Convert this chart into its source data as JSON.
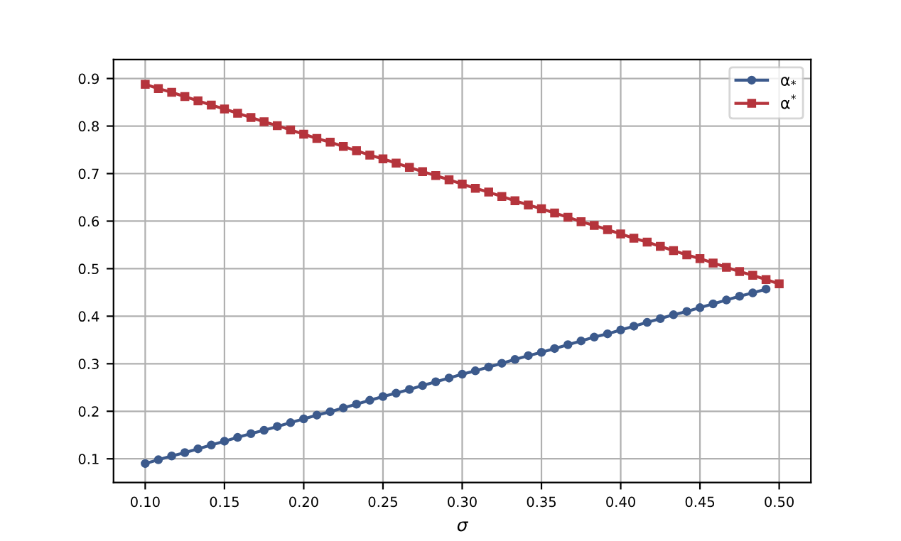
{
  "chart_data": {
    "type": "line",
    "xlabel": "σ",
    "x": [
      0.1,
      0.1083,
      0.1167,
      0.125,
      0.1333,
      0.1417,
      0.15,
      0.1583,
      0.1667,
      0.175,
      0.1833,
      0.1917,
      0.2,
      0.2083,
      0.2167,
      0.225,
      0.2333,
      0.2417,
      0.25,
      0.2583,
      0.2667,
      0.275,
      0.2833,
      0.2917,
      0.3,
      0.3083,
      0.3167,
      0.325,
      0.3333,
      0.3417,
      0.35,
      0.3583,
      0.3667,
      0.375,
      0.3833,
      0.3917,
      0.4,
      0.4083,
      0.4167,
      0.425,
      0.4333,
      0.4417,
      0.45,
      0.4583,
      0.4667,
      0.475,
      0.4833,
      0.4917,
      0.5
    ],
    "series": [
      {
        "name": "α$_{*}$",
        "color": "#3c5a8c",
        "marker": "circle",
        "values": [
          0.09,
          0.098,
          0.106,
          0.113,
          0.121,
          0.129,
          0.137,
          0.145,
          0.153,
          0.16,
          0.168,
          0.176,
          0.184,
          0.192,
          0.199,
          0.207,
          0.215,
          0.223,
          0.231,
          0.238,
          0.246,
          0.254,
          0.262,
          0.27,
          0.278,
          0.285,
          0.293,
          0.301,
          0.309,
          0.317,
          0.324,
          0.332,
          0.34,
          0.348,
          0.356,
          0.363,
          0.371,
          0.379,
          0.387,
          0.395,
          0.403,
          0.41,
          0.418,
          0.426,
          0.434,
          0.442,
          0.449,
          0.457,
          null
        ]
      },
      {
        "name": "α$^{*}$",
        "color": "#b5343c",
        "marker": "square",
        "values": [
          0.888,
          0.879,
          0.871,
          0.862,
          0.853,
          0.844,
          0.836,
          0.827,
          0.818,
          0.809,
          0.801,
          0.792,
          0.783,
          0.774,
          0.766,
          0.757,
          0.748,
          0.739,
          0.731,
          0.722,
          0.713,
          0.704,
          0.696,
          0.687,
          0.678,
          0.669,
          0.661,
          0.652,
          0.643,
          0.634,
          0.626,
          0.617,
          0.608,
          0.599,
          0.591,
          0.582,
          0.573,
          0.564,
          0.556,
          0.547,
          0.538,
          0.529,
          0.521,
          0.512,
          0.503,
          0.494,
          0.486,
          0.477,
          0.468
        ]
      }
    ],
    "xlim": [
      0.08,
      0.52
    ],
    "ylim": [
      0.05,
      0.94
    ],
    "xticks": [
      {
        "value": 0.1,
        "label": "0.10"
      },
      0.15,
      {
        "value": 0.2,
        "label": "0.20"
      },
      0.25,
      {
        "value": 0.3,
        "label": "0.30"
      },
      0.35,
      {
        "value": 0.4,
        "label": "0.40"
      },
      0.45,
      {
        "value": 0.5,
        "label": "0.50"
      }
    ],
    "yticks": [
      0.1,
      0.2,
      0.3,
      0.4,
      0.5,
      0.6,
      0.7,
      0.8,
      0.9
    ],
    "grid": true,
    "legend": "top right",
    "line_style": "solid"
  }
}
